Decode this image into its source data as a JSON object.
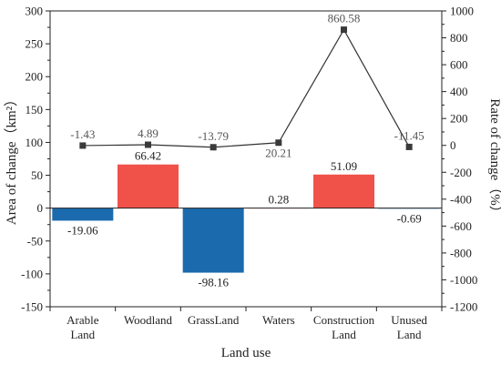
{
  "chart_data": {
    "type": "bar",
    "xlabel": "Land use",
    "ylabel_left": "Area of change（km²）",
    "ylabel_right": "Rate of change（%）",
    "categories": [
      [
        "Arable",
        "Land"
      ],
      [
        "Woodland"
      ],
      [
        "GrassLand"
      ],
      [
        "Waters"
      ],
      [
        "Construction",
        "Land"
      ],
      [
        "Unused",
        "Land"
      ]
    ],
    "series": [
      {
        "type": "bar",
        "axis": "left",
        "values": [
          -19.06,
          66.42,
          -98.16,
          0.28,
          51.09,
          -0.69
        ],
        "labels": [
          "-19.06",
          "66.42",
          "-98.16",
          "0.28",
          "51.09",
          "-0.69"
        ]
      },
      {
        "type": "line",
        "axis": "right",
        "values": [
          -1.43,
          4.89,
          -13.79,
          20.21,
          860.58,
          -11.45
        ],
        "labels": [
          "-1.43",
          "4.89",
          "-13.79",
          "20.21",
          "860.58",
          "-11.45"
        ]
      }
    ],
    "ylim_left": [
      -150,
      300
    ],
    "yticks_left": [
      -150,
      -100,
      -50,
      0,
      50,
      100,
      150,
      200,
      250,
      300
    ],
    "ylim_right": [
      -1200,
      1000
    ],
    "yticks_right": [
      -1200,
      -1000,
      -800,
      -600,
      -400,
      -200,
      0,
      200,
      400,
      600,
      800,
      1000
    ],
    "colors": {
      "positive_bar": "#f0524a",
      "negative_bar": "#1a6aad",
      "line": "#333333",
      "marker": "#3a3a3a"
    },
    "grid": false,
    "legend": "none"
  }
}
